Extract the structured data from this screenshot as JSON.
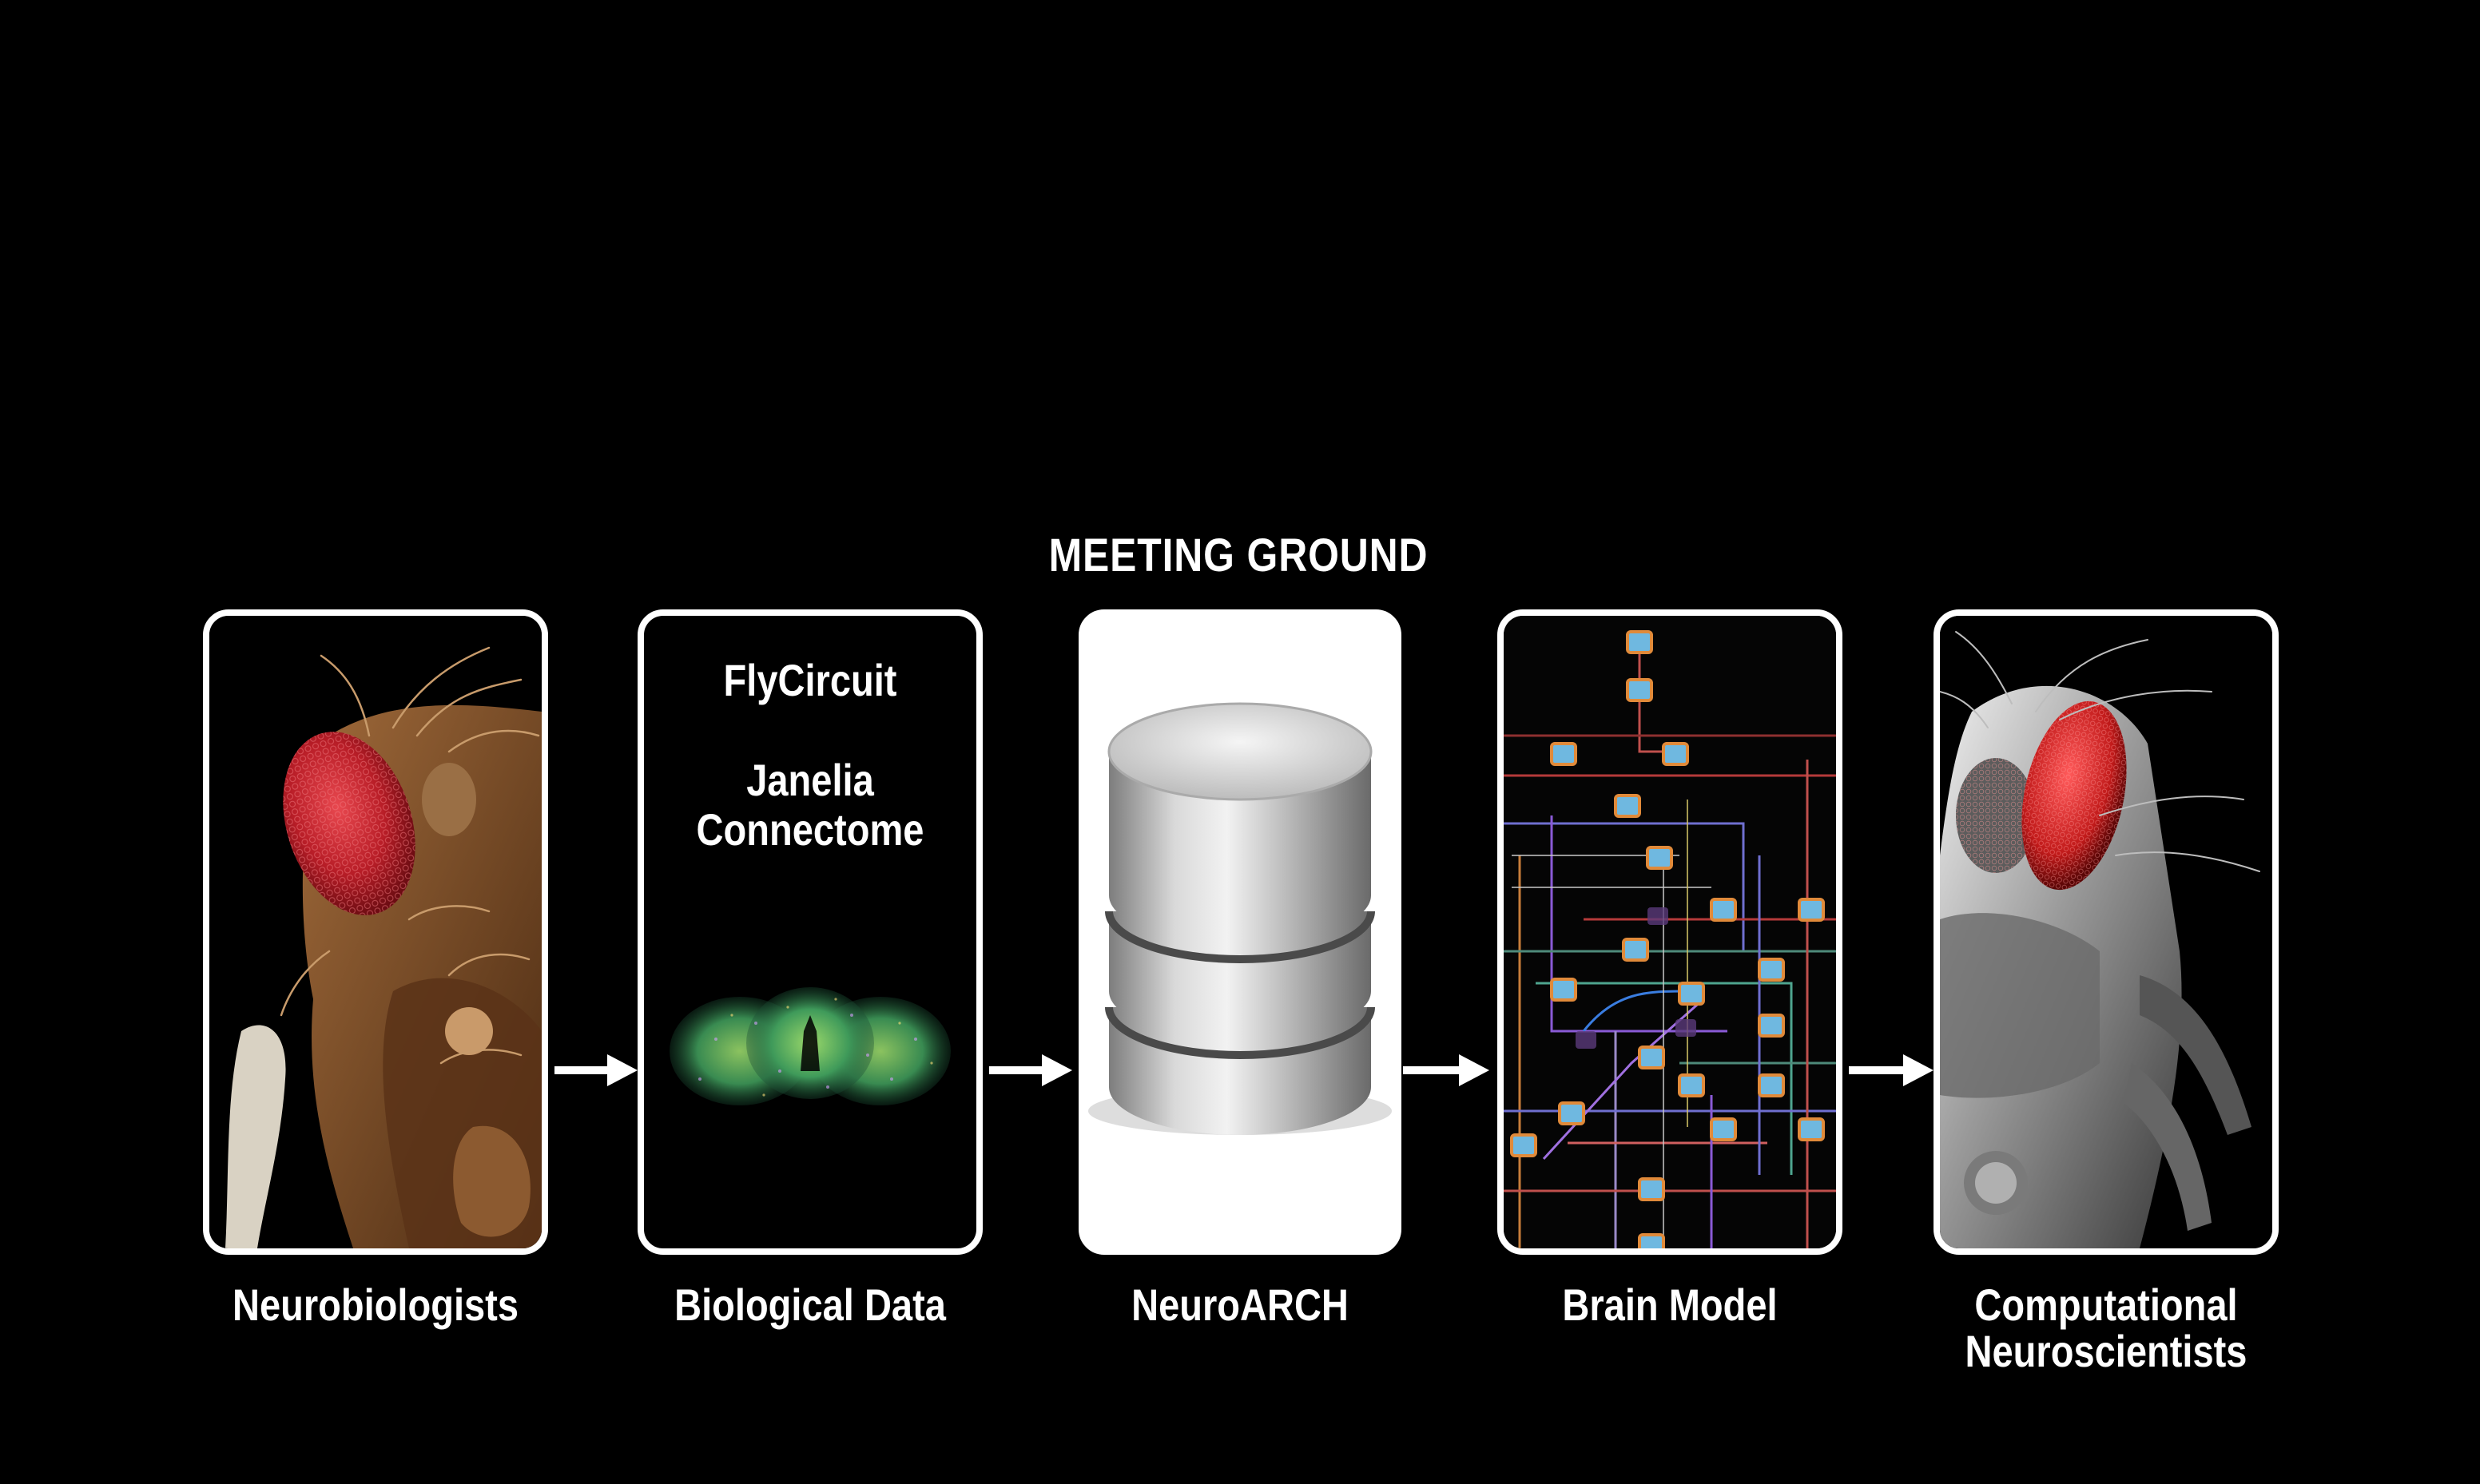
{
  "heading": "MEETING GROUND",
  "panels": {
    "neurobiologists": {
      "caption": "Neurobiologists"
    },
    "biological_data": {
      "caption": "Biological Data",
      "source_1": "FlyCircuit",
      "source_2_line1": "Janelia",
      "source_2_line2": "Connectome"
    },
    "neuroarch": {
      "caption": "NeuroARCH"
    },
    "brain_model": {
      "caption": "Brain Model"
    },
    "computational": {
      "caption_line1": "Computational",
      "caption_line2": "Neuroscientists"
    }
  },
  "colors": {
    "background": "#000000",
    "frame": "#ffffff",
    "fly_eye": "#c8202a",
    "fly_body": "#7a4a25"
  }
}
